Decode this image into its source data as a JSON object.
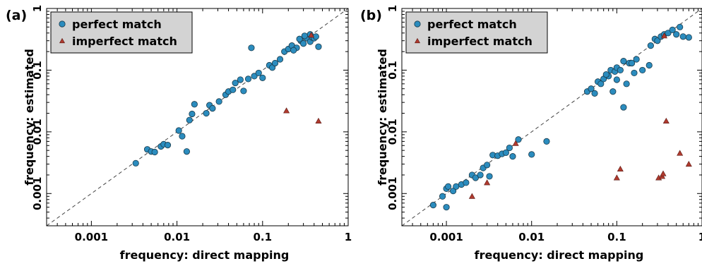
{
  "chart_data": [
    {
      "type": "scatter",
      "panel_label": "(a)",
      "xlabel": "frequency: direct mapping",
      "ylabel": "frequency: estimated",
      "scale": "log",
      "xlim": [
        0.0003,
        1
      ],
      "ylim": [
        0.0003,
        1
      ],
      "x_ticks": [
        {
          "value": 0.001,
          "label": "0.001"
        },
        {
          "value": 0.01,
          "label": "0.01"
        },
        {
          "value": 0.1,
          "label": "0.1"
        },
        {
          "value": 1,
          "label": "1"
        }
      ],
      "y_ticks": [
        {
          "value": 0.001,
          "label": "0.001"
        },
        {
          "value": 0.01,
          "label": "0.01"
        },
        {
          "value": 0.1,
          "label": "0.1"
        },
        {
          "value": 1,
          "label": "1"
        }
      ],
      "diagonal": "y = x dashed reference line",
      "legend_position": "top-left",
      "series": [
        {
          "name": "perfect match",
          "marker": "circle",
          "color": "#2b8cbe",
          "points": [
            [
              0.0033,
              0.0031
            ],
            [
              0.0045,
              0.0052
            ],
            [
              0.005,
              0.0048
            ],
            [
              0.0055,
              0.0047
            ],
            [
              0.0065,
              0.0058
            ],
            [
              0.007,
              0.0063
            ],
            [
              0.0078,
              0.0061
            ],
            [
              0.0105,
              0.0105
            ],
            [
              0.0115,
              0.0085
            ],
            [
              0.013,
              0.0048
            ],
            [
              0.014,
              0.0155
            ],
            [
              0.015,
              0.0195
            ],
            [
              0.016,
              0.028
            ],
            [
              0.022,
              0.02
            ],
            [
              0.024,
              0.027
            ],
            [
              0.026,
              0.024
            ],
            [
              0.031,
              0.031
            ],
            [
              0.037,
              0.04
            ],
            [
              0.04,
              0.045
            ],
            [
              0.045,
              0.048
            ],
            [
              0.048,
              0.062
            ],
            [
              0.055,
              0.07
            ],
            [
              0.06,
              0.046
            ],
            [
              0.068,
              0.072
            ],
            [
              0.074,
              0.23
            ],
            [
              0.08,
              0.08
            ],
            [
              0.09,
              0.09
            ],
            [
              0.1,
              0.075
            ],
            [
              0.12,
              0.12
            ],
            [
              0.13,
              0.11
            ],
            [
              0.14,
              0.13
            ],
            [
              0.16,
              0.15
            ],
            [
              0.18,
              0.2
            ],
            [
              0.2,
              0.22
            ],
            [
              0.22,
              0.25
            ],
            [
              0.25,
              0.23
            ],
            [
              0.28,
              0.3
            ],
            [
              0.3,
              0.27
            ],
            [
              0.33,
              0.33
            ],
            [
              0.36,
              0.29
            ],
            [
              0.38,
              0.34
            ],
            [
              0.4,
              0.33
            ],
            [
              0.42,
              0.35
            ],
            [
              0.45,
              0.24
            ],
            [
              0.36,
              0.38
            ],
            [
              0.31,
              0.36
            ],
            [
              0.27,
              0.32
            ],
            [
              0.23,
              0.21
            ]
          ]
        },
        {
          "name": "imperfect match",
          "marker": "triangle",
          "color": "#b03a2e",
          "points": [
            [
              0.19,
              0.022
            ],
            [
              0.45,
              0.015
            ],
            [
              0.37,
              0.37
            ]
          ]
        }
      ]
    },
    {
      "type": "scatter",
      "panel_label": "(b)",
      "xlabel": "frequency: direct mapping",
      "ylabel": "frequency: estimated",
      "scale": "log",
      "xlim": [
        0.0003,
        1
      ],
      "ylim": [
        0.0003,
        1
      ],
      "x_ticks": [
        {
          "value": 0.001,
          "label": "0.001"
        },
        {
          "value": 0.01,
          "label": "0.01"
        },
        {
          "value": 0.1,
          "label": "0.1"
        },
        {
          "value": 1,
          "label": "1"
        }
      ],
      "y_ticks": [
        {
          "value": 0.001,
          "label": "0.001"
        },
        {
          "value": 0.01,
          "label": "0.01"
        },
        {
          "value": 0.1,
          "label": "0.1"
        },
        {
          "value": 1,
          "label": "1"
        }
      ],
      "diagonal": "y = x dashed reference line",
      "legend_position": "top-left",
      "series": [
        {
          "name": "perfect match",
          "marker": "circle",
          "color": "#2b8cbe",
          "points": [
            [
              0.0007,
              0.00065
            ],
            [
              0.0009,
              0.0009
            ],
            [
              0.001,
              0.0012
            ],
            [
              0.00105,
              0.0013
            ],
            [
              0.001,
              0.0006
            ],
            [
              0.0012,
              0.0011
            ],
            [
              0.0013,
              0.0013
            ],
            [
              0.0015,
              0.0014
            ],
            [
              0.0017,
              0.0015
            ],
            [
              0.002,
              0.002
            ],
            [
              0.0022,
              0.0018
            ],
            [
              0.0025,
              0.002
            ],
            [
              0.0027,
              0.0026
            ],
            [
              0.003,
              0.0029
            ],
            [
              0.0032,
              0.0019
            ],
            [
              0.0035,
              0.0042
            ],
            [
              0.004,
              0.0041
            ],
            [
              0.0045,
              0.0044
            ],
            [
              0.005,
              0.0046
            ],
            [
              0.0055,
              0.0055
            ],
            [
              0.006,
              0.004
            ],
            [
              0.007,
              0.0075
            ],
            [
              0.01,
              0.0043
            ],
            [
              0.015,
              0.007
            ],
            [
              0.045,
              0.045
            ],
            [
              0.05,
              0.05
            ],
            [
              0.055,
              0.042
            ],
            [
              0.06,
              0.065
            ],
            [
              0.065,
              0.06
            ],
            [
              0.07,
              0.072
            ],
            [
              0.08,
              0.08
            ],
            [
              0.085,
              0.1
            ],
            [
              0.09,
              0.045
            ],
            [
              0.095,
              0.095
            ],
            [
              0.1,
              0.11
            ],
            [
              0.11,
              0.1
            ],
            [
              0.12,
              0.14
            ],
            [
              0.13,
              0.06
            ],
            [
              0.12,
              0.025
            ],
            [
              0.14,
              0.13
            ],
            [
              0.16,
              0.09
            ],
            [
              0.2,
              0.1
            ],
            [
              0.25,
              0.25
            ],
            [
              0.28,
              0.32
            ],
            [
              0.3,
              0.3
            ],
            [
              0.33,
              0.35
            ],
            [
              0.36,
              0.38
            ],
            [
              0.4,
              0.4
            ],
            [
              0.45,
              0.45
            ],
            [
              0.5,
              0.38
            ],
            [
              0.55,
              0.5
            ],
            [
              0.6,
              0.35
            ],
            [
              0.7,
              0.34
            ],
            [
              0.24,
              0.12
            ],
            [
              0.1,
              0.07
            ],
            [
              0.15,
              0.13
            ],
            [
              0.17,
              0.15
            ],
            [
              0.075,
              0.085
            ]
          ]
        },
        {
          "name": "imperfect match",
          "marker": "triangle",
          "color": "#b03a2e",
          "points": [
            [
              0.002,
              0.0009
            ],
            [
              0.003,
              0.0015
            ],
            [
              0.0065,
              0.0065
            ],
            [
              0.1,
              0.0018
            ],
            [
              0.11,
              0.0025
            ],
            [
              0.31,
              0.0018
            ],
            [
              0.34,
              0.0019
            ],
            [
              0.35,
              0.0021
            ],
            [
              0.38,
              0.015
            ],
            [
              0.55,
              0.0045
            ],
            [
              0.7,
              0.003
            ],
            [
              0.36,
              0.36
            ]
          ]
        }
      ]
    }
  ]
}
